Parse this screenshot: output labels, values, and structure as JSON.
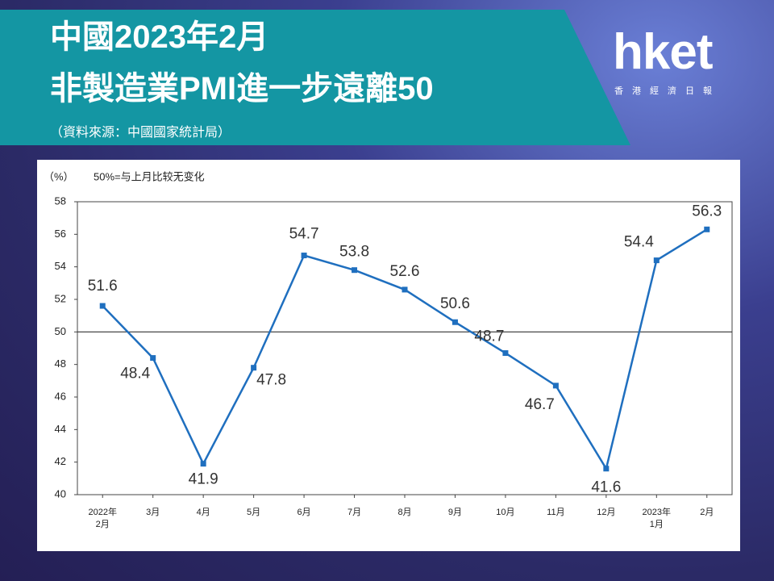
{
  "header": {
    "title_line1": "中國2023年2月",
    "title_line2": "非製造業PMI進一步遠離50",
    "source": "（資料來源：中國國家統計局）"
  },
  "logo": {
    "brand": "hket",
    "tagline": "香　港　經　濟　日　報"
  },
  "chart_data": {
    "type": "line",
    "y_unit_label": "（%）",
    "annotation": "50%=与上月比较无变化",
    "categories": [
      "2022年\n2月",
      "3月",
      "4月",
      "5月",
      "6月",
      "7月",
      "8月",
      "9月",
      "10月",
      "11月",
      "12月",
      "2023年\n1月",
      "2月"
    ],
    "values": [
      51.6,
      48.4,
      41.9,
      47.8,
      54.7,
      53.8,
      52.6,
      50.6,
      48.7,
      46.7,
      41.6,
      54.4,
      56.3
    ],
    "color": "#1f6fbf",
    "baseline": 50,
    "ylim": [
      40,
      58
    ],
    "yticks": [
      40,
      42,
      44,
      46,
      48,
      50,
      52,
      54,
      56,
      58
    ]
  }
}
